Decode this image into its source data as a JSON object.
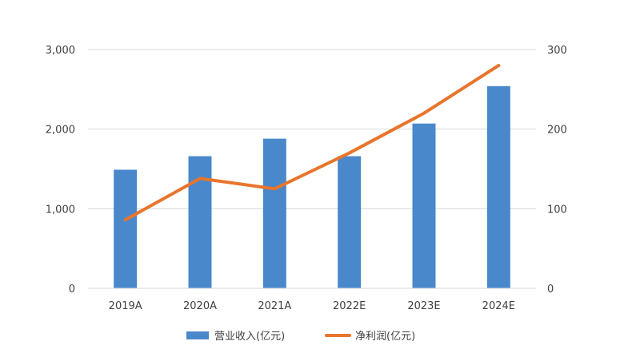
{
  "chart_data": {
    "type": "bar",
    "categories": [
      "2019A",
      "2020A",
      "2021A",
      "2022E",
      "2023E",
      "2024E"
    ],
    "series": [
      {
        "name": "营业收入(亿元)",
        "type": "bar",
        "axis": "left",
        "color": "#4A88CC",
        "values": [
          1490,
          1660,
          1880,
          1660,
          2070,
          2540
        ]
      },
      {
        "name": "净利润(亿元)",
        "type": "line",
        "axis": "right",
        "color": "#E8752C",
        "values": [
          86,
          138,
          125,
          170,
          220,
          280
        ]
      }
    ],
    "y_left": {
      "ylim": [
        0,
        3000
      ],
      "ticks": [
        0,
        1000,
        2000,
        3000
      ],
      "tick_labels": [
        "0",
        "1,000",
        "2,000",
        "3,000"
      ]
    },
    "y_right": {
      "ylim": [
        0,
        300
      ],
      "ticks": [
        0,
        100,
        200,
        300
      ],
      "tick_labels": [
        "0",
        "100",
        "200",
        "300"
      ]
    },
    "grid": true,
    "legend_position": "bottom"
  }
}
